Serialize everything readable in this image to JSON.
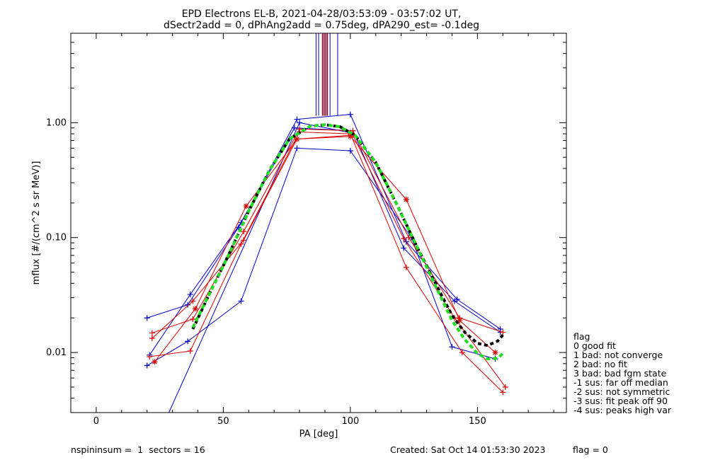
{
  "header": {
    "title_line1": "EPD Electrons EL-B, 2021-04-28/03:53:09 - 03:57:02 UT,",
    "title_line2": "dSectr2add = 0, dPhAng2add = 0.75deg, dPA290_est=  -0.1deg"
  },
  "footer": {
    "left": "nspininsum =  1  sectors = 16",
    "created": "Created: Sat Oct 14 01:53:30 2023",
    "flag": "flag = 0"
  },
  "legend": {
    "title": "flag",
    "entries": [
      " 0 good fit",
      " 1 bad: not converge",
      " 2 bad: no fit",
      " 3 bad: bad fgm state",
      "-1 sus: far off median",
      "-2 sus: not symmetric",
      "-3 sus: fit peak off 90",
      "-4 sus: peaks high var"
    ]
  },
  "chart_data": {
    "type": "line",
    "xlabel": "PA [deg]",
    "ylabel": "mflux [#/(cm^2 s sr MeV)]",
    "xlim": [
      -10,
      185
    ],
    "ylim": [
      0.003,
      6.0
    ],
    "yscale": "log",
    "x_ticks": [
      0,
      50,
      100,
      150
    ],
    "y_ticks": [
      {
        "value": 0.01,
        "label": "0.01"
      },
      {
        "value": 0.1,
        "label": "0.10"
      },
      {
        "value": 1.0,
        "label": "1.00"
      }
    ],
    "colors": {
      "blue": "#0000cc",
      "red": "#dd0000",
      "maroon": "#800020",
      "fit_black": "#000000",
      "fit_green": "#22dd22"
    },
    "series": [
      {
        "color": "blue",
        "marker": "plus",
        "x": [
          21,
          37,
          57,
          79,
          100,
          122,
          142,
          159
        ],
        "y": [
          0.0095,
          0.032,
          0.135,
          1.07,
          1.18,
          0.092,
          0.029,
          0.016
        ]
      },
      {
        "color": "blue",
        "marker": "plus",
        "x": [
          20,
          36,
          56,
          78,
          101,
          121,
          141,
          159
        ],
        "y": [
          0.02,
          0.026,
          0.123,
          0.9,
          0.85,
          0.081,
          0.028,
          0.015
        ]
      },
      {
        "color": "blue",
        "marker": "plus",
        "x": [
          20,
          36,
          57,
          79,
          100,
          124,
          140,
          157
        ],
        "y": [
          0.0077,
          0.0125,
          0.028,
          0.6,
          0.57,
          0.1,
          0.0112,
          0.0088
        ]
      },
      {
        "color": "blue",
        "marker": "plus",
        "x": [
          25,
          80,
          100
        ],
        "y": [
          0.002,
          1.0,
          0.82
        ]
      },
      {
        "color": "red",
        "marker": "star",
        "x": [
          23,
          39,
          59,
          79,
          100,
          122,
          143,
          157
        ],
        "y": [
          0.0083,
          0.024,
          0.188,
          0.72,
          0.76,
          0.215,
          0.019,
          0.01
        ]
      },
      {
        "color": "red",
        "marker": "plus",
        "x": [
          22,
          38,
          58,
          80,
          101,
          123,
          143,
          160
        ],
        "y": [
          0.0148,
          0.0195,
          0.113,
          0.88,
          0.85,
          0.1,
          0.02,
          0.015
        ]
      },
      {
        "color": "red",
        "marker": "plus",
        "x": [
          21,
          37,
          57,
          80,
          100,
          122,
          144,
          160
        ],
        "y": [
          0.0092,
          0.0103,
          0.088,
          0.83,
          0.8,
          0.055,
          0.01,
          0.0045
        ]
      },
      {
        "color": "red",
        "marker": "plus",
        "x": [
          22,
          38,
          58,
          79,
          101,
          121,
          141,
          161
        ],
        "y": [
          0.0133,
          0.028,
          0.095,
          0.72,
          0.78,
          0.098,
          0.02,
          0.005
        ]
      }
    ],
    "peak_lines": {
      "blue_x": [
        86.5,
        87.5,
        92,
        95
      ],
      "maroon_x": [
        89,
        89.5,
        90,
        90.5,
        91
      ],
      "y_bottom": 1.15
    },
    "fit_curves": [
      {
        "name": "fit-black",
        "color": "fit_black",
        "x": [
          38,
          45,
          52,
          60,
          68,
          76,
          84,
          90,
          96,
          102,
          110,
          118,
          126,
          134,
          140,
          145,
          150,
          154,
          158,
          160
        ],
        "y": [
          0.016,
          0.034,
          0.07,
          0.17,
          0.38,
          0.72,
          0.93,
          0.96,
          0.92,
          0.77,
          0.45,
          0.2,
          0.085,
          0.038,
          0.021,
          0.015,
          0.012,
          0.0115,
          0.0126,
          0.0142
        ]
      },
      {
        "name": "fit-green",
        "color": "fit_green",
        "x": [
          38,
          45,
          52,
          60,
          68,
          76,
          84,
          90,
          96,
          102,
          110,
          118,
          126,
          134,
          140,
          145,
          150,
          154,
          158,
          160
        ],
        "y": [
          0.0165,
          0.034,
          0.07,
          0.17,
          0.38,
          0.72,
          0.93,
          0.96,
          0.92,
          0.77,
          0.45,
          0.2,
          0.085,
          0.036,
          0.019,
          0.013,
          0.0098,
          0.0088,
          0.0089,
          0.0098
        ]
      }
    ]
  }
}
